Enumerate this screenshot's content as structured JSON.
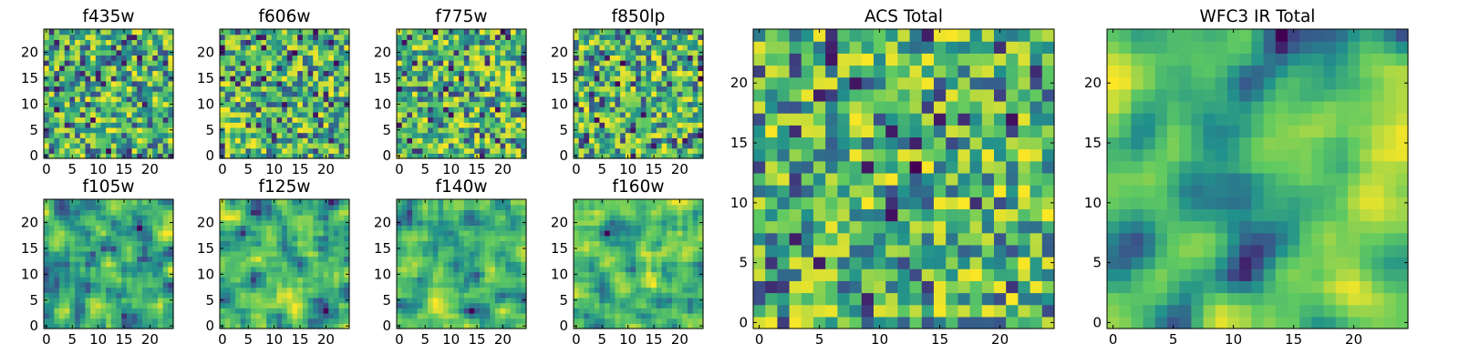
{
  "chart_data": [
    {
      "type": "heatmap",
      "title": "f435w",
      "grid_size": 25,
      "colormap": "viridis",
      "grid": false,
      "xticks": [
        0,
        5,
        10,
        15,
        20
      ],
      "yticks": [
        0,
        5,
        10,
        15,
        20
      ],
      "xlim": [
        0,
        24
      ],
      "ylim": [
        0,
        24
      ],
      "value_range": [
        0,
        1
      ],
      "noise_seed": 101,
      "smoothness": 0
    },
    {
      "type": "heatmap",
      "title": "f606w",
      "grid_size": 25,
      "colormap": "viridis",
      "grid": false,
      "xticks": [
        0,
        5,
        10,
        15,
        20
      ],
      "yticks": [
        0,
        5,
        10,
        15,
        20
      ],
      "xlim": [
        0,
        24
      ],
      "ylim": [
        0,
        24
      ],
      "value_range": [
        0,
        1
      ],
      "noise_seed": 202,
      "smoothness": 0
    },
    {
      "type": "heatmap",
      "title": "f775w",
      "grid_size": 25,
      "colormap": "viridis",
      "grid": false,
      "xticks": [
        0,
        5,
        10,
        15,
        20
      ],
      "yticks": [
        0,
        5,
        10,
        15,
        20
      ],
      "xlim": [
        0,
        24
      ],
      "ylim": [
        0,
        24
      ],
      "value_range": [
        0,
        1
      ],
      "noise_seed": 303,
      "smoothness": 0
    },
    {
      "type": "heatmap",
      "title": "f850lp",
      "grid_size": 25,
      "colormap": "viridis",
      "grid": false,
      "xticks": [
        0,
        5,
        10,
        15,
        20
      ],
      "yticks": [
        0,
        5,
        10,
        15,
        20
      ],
      "xlim": [
        0,
        24
      ],
      "ylim": [
        0,
        24
      ],
      "value_range": [
        0,
        1
      ],
      "noise_seed": 404,
      "smoothness": 0
    },
    {
      "type": "heatmap",
      "title": "f105w",
      "grid_size": 25,
      "colormap": "viridis",
      "grid": false,
      "xticks": [
        0,
        5,
        10,
        15,
        20
      ],
      "yticks": [
        0,
        5,
        10,
        15,
        20
      ],
      "xlim": [
        0,
        24
      ],
      "ylim": [
        0,
        24
      ],
      "value_range": [
        0,
        1
      ],
      "noise_seed": 505,
      "smoothness": 1
    },
    {
      "type": "heatmap",
      "title": "f125w",
      "grid_size": 25,
      "colormap": "viridis",
      "grid": false,
      "xticks": [
        0,
        5,
        10,
        15,
        20
      ],
      "yticks": [
        0,
        5,
        10,
        15,
        20
      ],
      "xlim": [
        0,
        24
      ],
      "ylim": [
        0,
        24
      ],
      "value_range": [
        0,
        1
      ],
      "noise_seed": 606,
      "smoothness": 1
    },
    {
      "type": "heatmap",
      "title": "f140w",
      "grid_size": 25,
      "colormap": "viridis",
      "grid": false,
      "xticks": [
        0,
        5,
        10,
        15,
        20
      ],
      "yticks": [
        0,
        5,
        10,
        15,
        20
      ],
      "xlim": [
        0,
        24
      ],
      "ylim": [
        0,
        24
      ],
      "value_range": [
        0,
        1
      ],
      "noise_seed": 707,
      "smoothness": 1
    },
    {
      "type": "heatmap",
      "title": "f160w",
      "grid_size": 25,
      "colormap": "viridis",
      "grid": false,
      "xticks": [
        0,
        5,
        10,
        15,
        20
      ],
      "yticks": [
        0,
        5,
        10,
        15,
        20
      ],
      "xlim": [
        0,
        24
      ],
      "ylim": [
        0,
        24
      ],
      "value_range": [
        0,
        1
      ],
      "noise_seed": 808,
      "smoothness": 1
    },
    {
      "type": "heatmap",
      "title": "ACS Total",
      "grid_size": 25,
      "colormap": "viridis",
      "grid": false,
      "xticks": [
        0,
        5,
        10,
        15,
        20
      ],
      "yticks": [
        0,
        5,
        10,
        15,
        20
      ],
      "xlim": [
        0,
        24
      ],
      "ylim": [
        0,
        24
      ],
      "value_range": [
        0,
        1
      ],
      "noise_seed": 909,
      "smoothness": 0
    },
    {
      "type": "heatmap",
      "title": "WFC3 IR Total",
      "grid_size": 25,
      "colormap": "viridis",
      "grid": false,
      "xticks": [
        0,
        5,
        10,
        15,
        20
      ],
      "yticks": [
        0,
        5,
        10,
        15,
        20
      ],
      "xlim": [
        0,
        24
      ],
      "ylim": [
        0,
        24
      ],
      "value_range": [
        0,
        1
      ],
      "noise_seed": 1010,
      "smoothness": 2
    }
  ],
  "colors": {
    "viridis_stops": [
      "#440154",
      "#3b528b",
      "#21918c",
      "#5ec962",
      "#fde725"
    ],
    "background": "#ffffff",
    "axis": "#000000"
  }
}
